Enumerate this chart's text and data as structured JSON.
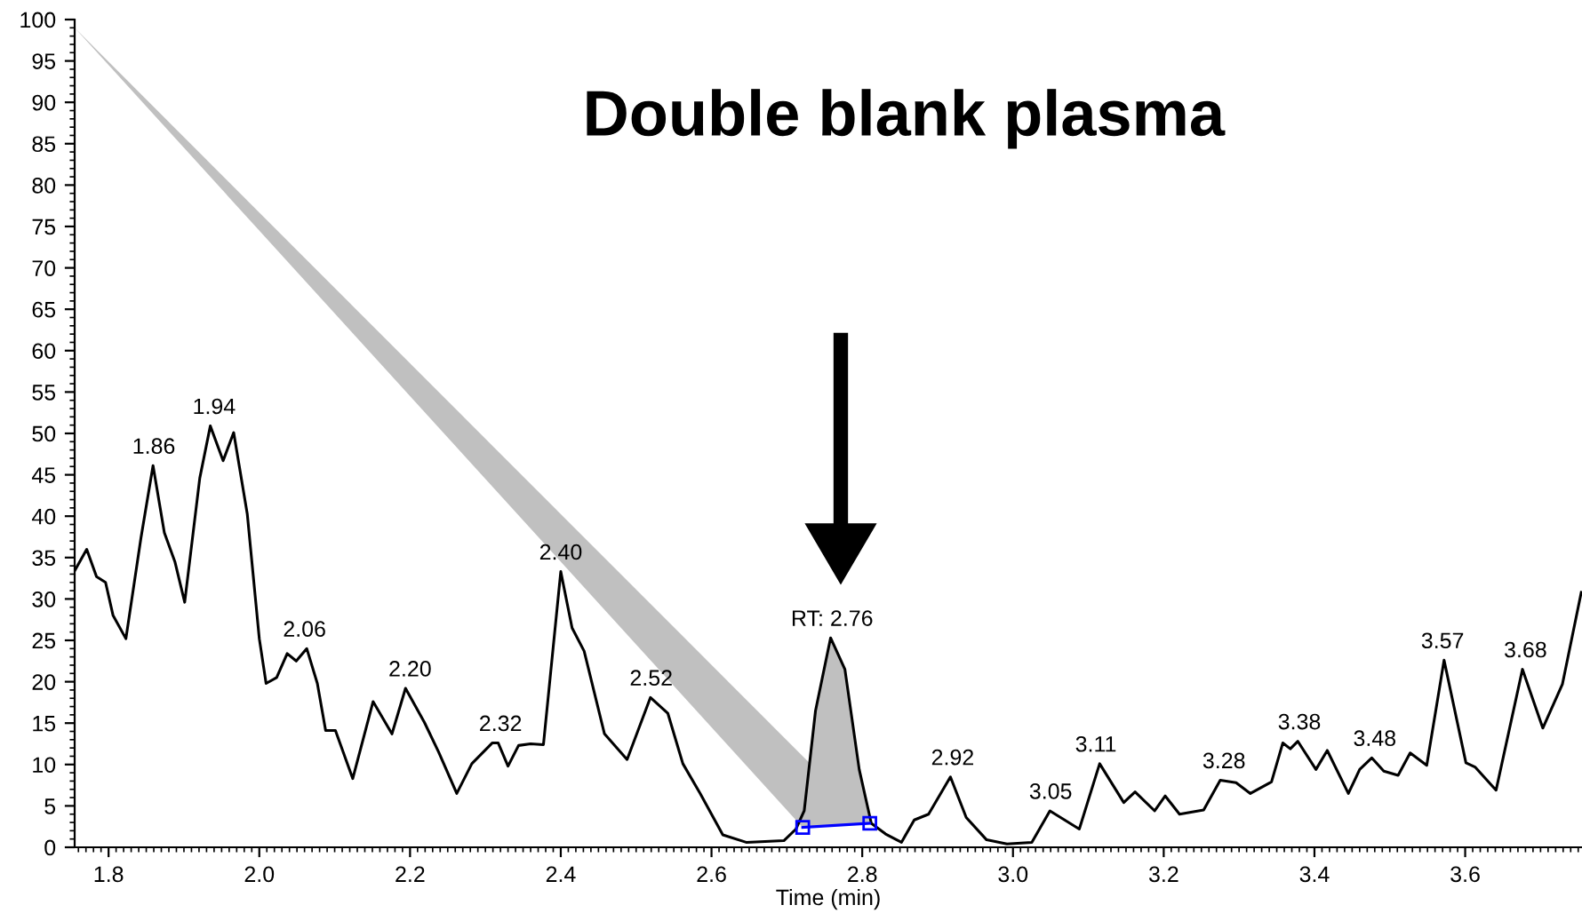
{
  "chart_data": {
    "type": "line",
    "title": "Double blank plasma",
    "xlabel": "Time (min)",
    "xlim": [
      1.755,
      3.755
    ],
    "ylim": [
      0,
      100
    ],
    "xticks": [
      1.8,
      {
        "value": 2,
        "label": "2.0"
      },
      2.2,
      2.4,
      2.6,
      2.8,
      {
        "value": 3,
        "label": "3.0"
      },
      3.2,
      3.4,
      3.6
    ],
    "yticks": [
      0,
      5,
      10,
      15,
      20,
      25,
      30,
      35,
      40,
      45,
      50,
      55,
      60,
      65,
      70,
      75,
      80,
      85,
      90,
      95,
      100
    ],
    "grid": false,
    "series": [
      {
        "color": "#000000",
        "x": [
          1.755,
          1.771,
          1.784,
          1.796,
          1.806,
          1.823,
          1.843,
          1.859,
          1.874,
          1.888,
          1.901,
          1.921,
          1.935,
          1.952,
          1.966,
          1.984,
          2.0,
          2.009,
          2.023,
          2.037,
          2.049,
          2.063,
          2.077,
          2.088,
          2.101,
          2.124,
          2.151,
          2.176,
          2.194,
          2.219,
          2.238,
          2.262,
          2.282,
          2.309,
          2.317,
          2.33,
          2.344,
          2.36,
          2.377,
          2.4,
          2.415,
          2.431,
          2.458,
          2.488,
          2.519,
          2.542,
          2.562,
          2.585,
          2.615,
          2.646,
          2.696,
          2.712,
          2.723,
          2.738,
          2.758,
          2.777,
          2.796,
          2.812,
          2.831,
          2.852,
          2.869,
          2.888,
          2.917,
          2.938,
          2.965,
          2.992,
          3.025,
          3.049,
          3.088,
          3.115,
          3.147,
          3.162,
          3.188,
          3.202,
          3.221,
          3.253,
          3.275,
          3.296,
          3.315,
          3.343,
          3.358,
          3.368,
          3.378,
          3.402,
          3.417,
          3.445,
          3.46,
          3.476,
          3.492,
          3.511,
          3.527,
          3.549,
          3.572,
          3.601,
          3.613,
          3.641,
          3.676,
          3.703,
          3.729,
          3.754
        ],
        "values": [
          33.4,
          36,
          32.7,
          32,
          28,
          25.2,
          37.4,
          46.1,
          38,
          34.5,
          29.6,
          44.6,
          50.9,
          46.7,
          50.1,
          40.3,
          25.2,
          19.8,
          20.5,
          23.4,
          22.5,
          24,
          19.8,
          14.1,
          14.1,
          8.3,
          17.6,
          13.7,
          19.2,
          15.1,
          11.5,
          6.5,
          10.1,
          12.6,
          12.6,
          9.8,
          12.3,
          12.5,
          12.4,
          33.3,
          26.5,
          23.7,
          13.7,
          10.6,
          18.1,
          16.2,
          10.1,
          6.5,
          1.5,
          0.6,
          0.8,
          2.2,
          4.4,
          16.5,
          25.3,
          21.5,
          9.4,
          2.9,
          1.6,
          0.6,
          3.3,
          4,
          8.5,
          3.6,
          0.9,
          0.4,
          0.6,
          4.4,
          2.2,
          10.1,
          5.4,
          6.7,
          4.4,
          6.2,
          4,
          4.5,
          8.1,
          7.8,
          6.5,
          7.9,
          12.6,
          11.9,
          12.8,
          9.4,
          11.7,
          6.5,
          9.4,
          10.8,
          9.2,
          8.7,
          11.4,
          9.9,
          22.6,
          10.2,
          9.7,
          6.9,
          21.5,
          14.4,
          19.7,
          30.8
        ]
      },
      {
        "color": "#0000ff",
        "marker": "square",
        "x": [
          2.721,
          2.81
        ],
        "values": [
          2.4,
          2.9
        ]
      }
    ],
    "annotations": [
      {
        "text": "1.86",
        "x": 1.86,
        "y": 46.1
      },
      {
        "text": "1.94",
        "x": 1.94,
        "y": 50.9
      },
      {
        "text": "2.06",
        "x": 2.06,
        "y": 24
      },
      {
        "text": "2.20",
        "x": 2.2,
        "y": 19.2
      },
      {
        "text": "2.32",
        "x": 2.32,
        "y": 12.6
      },
      {
        "text": "2.40",
        "x": 2.4,
        "y": 33.3
      },
      {
        "text": "2.52",
        "x": 2.52,
        "y": 18.1
      },
      {
        "text": "RT: 2.76",
        "x": 2.76,
        "y": 25.3
      },
      {
        "text": "2.92",
        "x": 2.92,
        "y": 8.5
      },
      {
        "text": "3.05",
        "x": 3.05,
        "y": 4.4
      },
      {
        "text": "3.11",
        "x": 3.11,
        "y": 10.1
      },
      {
        "text": "3.28",
        "x": 3.28,
        "y": 8.1
      },
      {
        "text": "3.38",
        "x": 3.38,
        "y": 12.8
      },
      {
        "text": "3.48",
        "x": 3.48,
        "y": 10.8
      },
      {
        "text": "3.57",
        "x": 3.57,
        "y": 22.6
      },
      {
        "text": "3.68",
        "x": 3.68,
        "y": 21.5
      }
    ]
  }
}
